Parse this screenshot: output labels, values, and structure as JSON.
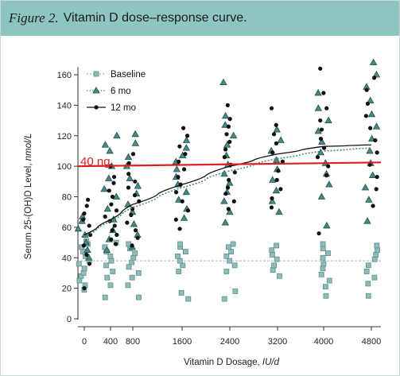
{
  "figure": {
    "label": "Figure 2.",
    "title": "Vitamin D dose–response curve."
  },
  "chart_data": {
    "type": "scatter",
    "title": "Vitamin D dose–response curve.",
    "xlabel": "Vitamin D Dosage, IU/d",
    "ylabel": "Serum 25-(OH)D Level, nmol/L",
    "xticks": [
      0,
      400,
      800,
      1600,
      2400,
      3200,
      4000,
      4800
    ],
    "yticks": [
      0,
      20,
      40,
      60,
      80,
      100,
      120,
      140,
      160
    ],
    "ylim": [
      0,
      165
    ],
    "legend_position": "top-left",
    "legend": [
      "Baseline",
      "6 mo",
      "12 mo"
    ],
    "annotation": {
      "text": "40 ng",
      "y": 101,
      "color": "#e02020"
    },
    "colors": {
      "baseline": "#8fbcba",
      "six_mo": "#4a8a86",
      "twelve_mo": "#111111",
      "reference": "#e02020"
    },
    "series": [
      {
        "name": "Baseline",
        "marker": "square",
        "points": [
          [
            0,
            19
          ],
          [
            0,
            22
          ],
          [
            0,
            25
          ],
          [
            0,
            28
          ],
          [
            0,
            30
          ],
          [
            0,
            33
          ],
          [
            0,
            36
          ],
          [
            0,
            38
          ],
          [
            0,
            41
          ],
          [
            0,
            44
          ],
          [
            0,
            47
          ],
          [
            0,
            49
          ],
          [
            0,
            51
          ],
          [
            400,
            14
          ],
          [
            400,
            22
          ],
          [
            400,
            27
          ],
          [
            400,
            31
          ],
          [
            400,
            35
          ],
          [
            400,
            38
          ],
          [
            400,
            41
          ],
          [
            400,
            44
          ],
          [
            400,
            47
          ],
          [
            400,
            50
          ],
          [
            800,
            14
          ],
          [
            800,
            22
          ],
          [
            800,
            27
          ],
          [
            800,
            30
          ],
          [
            800,
            34
          ],
          [
            800,
            37
          ],
          [
            800,
            40
          ],
          [
            800,
            43
          ],
          [
            800,
            46
          ],
          [
            800,
            49
          ],
          [
            1600,
            13
          ],
          [
            1600,
            17
          ],
          [
            1600,
            31
          ],
          [
            1600,
            35
          ],
          [
            1600,
            38
          ],
          [
            1600,
            41
          ],
          [
            1600,
            44
          ],
          [
            1600,
            47
          ],
          [
            1600,
            49
          ],
          [
            2400,
            13
          ],
          [
            2400,
            18
          ],
          [
            2400,
            31
          ],
          [
            2400,
            35
          ],
          [
            2400,
            38
          ],
          [
            2400,
            41
          ],
          [
            2400,
            44
          ],
          [
            2400,
            47
          ],
          [
            2400,
            49
          ],
          [
            3200,
            28
          ],
          [
            3200,
            32
          ],
          [
            3200,
            35
          ],
          [
            3200,
            39
          ],
          [
            3200,
            42
          ],
          [
            3200,
            45
          ],
          [
            3200,
            48
          ],
          [
            4000,
            15
          ],
          [
            4000,
            21
          ],
          [
            4000,
            25
          ],
          [
            4000,
            29
          ],
          [
            4000,
            33
          ],
          [
            4000,
            36
          ],
          [
            4000,
            40
          ],
          [
            4000,
            43
          ],
          [
            4000,
            46
          ],
          [
            4000,
            49
          ],
          [
            4800,
            15
          ],
          [
            4800,
            23
          ],
          [
            4800,
            27
          ],
          [
            4800,
            31
          ],
          [
            4800,
            35
          ],
          [
            4800,
            39
          ],
          [
            4800,
            42
          ],
          [
            4800,
            45
          ],
          [
            4800,
            48
          ]
        ],
        "mean": 38
      },
      {
        "name": "6 mo",
        "marker": "triangle",
        "points": [
          [
            0,
            40
          ],
          [
            0,
            45
          ],
          [
            0,
            50
          ],
          [
            0,
            55
          ],
          [
            0,
            59
          ],
          [
            0,
            64
          ],
          [
            0,
            67
          ],
          [
            400,
            45
          ],
          [
            400,
            52
          ],
          [
            400,
            58
          ],
          [
            400,
            65
          ],
          [
            400,
            72
          ],
          [
            400,
            80
          ],
          [
            400,
            85
          ],
          [
            400,
            92
          ],
          [
            400,
            100
          ],
          [
            400,
            110
          ],
          [
            400,
            114
          ],
          [
            400,
            120
          ],
          [
            800,
            47
          ],
          [
            800,
            55
          ],
          [
            800,
            62
          ],
          [
            800,
            70
          ],
          [
            800,
            75
          ],
          [
            800,
            82
          ],
          [
            800,
            87
          ],
          [
            800,
            92
          ],
          [
            800,
            100
          ],
          [
            800,
            106
          ],
          [
            800,
            115
          ],
          [
            800,
            121
          ],
          [
            1600,
            66
          ],
          [
            1600,
            72
          ],
          [
            1600,
            78
          ],
          [
            1600,
            83
          ],
          [
            1600,
            88
          ],
          [
            1600,
            93
          ],
          [
            1600,
            98
          ],
          [
            1600,
            103
          ],
          [
            1600,
            107
          ],
          [
            1600,
            112
          ],
          [
            1600,
            117
          ],
          [
            2400,
            63
          ],
          [
            2400,
            70
          ],
          [
            2400,
            77
          ],
          [
            2400,
            83
          ],
          [
            2400,
            89
          ],
          [
            2400,
            95
          ],
          [
            2400,
            101
          ],
          [
            2400,
            107
          ],
          [
            2400,
            114
          ],
          [
            2400,
            120
          ],
          [
            2400,
            127
          ],
          [
            2400,
            133
          ],
          [
            2400,
            155
          ],
          [
            3200,
            70
          ],
          [
            3200,
            77
          ],
          [
            3200,
            84
          ],
          [
            3200,
            91
          ],
          [
            3200,
            98
          ],
          [
            3200,
            104
          ],
          [
            3200,
            110
          ],
          [
            3200,
            117
          ],
          [
            3200,
            124
          ],
          [
            4000,
            61
          ],
          [
            4000,
            80
          ],
          [
            4000,
            88
          ],
          [
            4000,
            95
          ],
          [
            4000,
            102
          ],
          [
            4000,
            109
          ],
          [
            4000,
            116
          ],
          [
            4000,
            123
          ],
          [
            4000,
            130
          ],
          [
            4000,
            138
          ],
          [
            4000,
            148
          ],
          [
            4800,
            64
          ],
          [
            4800,
            78
          ],
          [
            4800,
            86
          ],
          [
            4800,
            94
          ],
          [
            4800,
            102
          ],
          [
            4800,
            110
          ],
          [
            4800,
            118
          ],
          [
            4800,
            126
          ],
          [
            4800,
            134
          ],
          [
            4800,
            143
          ],
          [
            4800,
            152
          ],
          [
            4800,
            160
          ],
          [
            4800,
            168
          ]
        ],
        "fit": [
          [
            0,
            54
          ],
          [
            400,
            64
          ],
          [
            800,
            73
          ],
          [
            1600,
            86
          ],
          [
            2400,
            97
          ],
          [
            3200,
            105
          ],
          [
            4000,
            110
          ],
          [
            4800,
            112
          ]
        ]
      },
      {
        "name": "12 mo",
        "marker": "circle",
        "points": [
          [
            0,
            20
          ],
          [
            0,
            36
          ],
          [
            0,
            42
          ],
          [
            0,
            48
          ],
          [
            0,
            55
          ],
          [
            0,
            61
          ],
          [
            0,
            65
          ],
          [
            0,
            69
          ],
          [
            0,
            74
          ],
          [
            0,
            78
          ],
          [
            400,
            49
          ],
          [
            400,
            52
          ],
          [
            400,
            55
          ],
          [
            400,
            58
          ],
          [
            400,
            61
          ],
          [
            400,
            64
          ],
          [
            400,
            67
          ],
          [
            400,
            71
          ],
          [
            400,
            75
          ],
          [
            400,
            80
          ],
          [
            400,
            84
          ],
          [
            400,
            89
          ],
          [
            400,
            93
          ],
          [
            400,
            100
          ],
          [
            800,
            48
          ],
          [
            800,
            53
          ],
          [
            800,
            58
          ],
          [
            800,
            63
          ],
          [
            800,
            68
          ],
          [
            800,
            72
          ],
          [
            800,
            77
          ],
          [
            800,
            81
          ],
          [
            800,
            86
          ],
          [
            800,
            90
          ],
          [
            800,
            95
          ],
          [
            800,
            102
          ],
          [
            800,
            108
          ],
          [
            1600,
            59
          ],
          [
            1600,
            65
          ],
          [
            1600,
            71
          ],
          [
            1600,
            77
          ],
          [
            1600,
            83
          ],
          [
            1600,
            88
          ],
          [
            1600,
            93
          ],
          [
            1600,
            98
          ],
          [
            1600,
            103
          ],
          [
            1600,
            108
          ],
          [
            1600,
            113
          ],
          [
            1600,
            120
          ],
          [
            1600,
            125
          ],
          [
            2400,
            72
          ],
          [
            2400,
            77
          ],
          [
            2400,
            82
          ],
          [
            2400,
            86
          ],
          [
            2400,
            91
          ],
          [
            2400,
            96
          ],
          [
            2400,
            101
          ],
          [
            2400,
            106
          ],
          [
            2400,
            111
          ],
          [
            2400,
            116
          ],
          [
            2400,
            121
          ],
          [
            2400,
            126
          ],
          [
            2400,
            131
          ],
          [
            2400,
            140
          ],
          [
            3200,
            73
          ],
          [
            3200,
            79
          ],
          [
            3200,
            85
          ],
          [
            3200,
            91
          ],
          [
            3200,
            97
          ],
          [
            3200,
            103
          ],
          [
            3200,
            109
          ],
          [
            3200,
            115
          ],
          [
            3200,
            121
          ],
          [
            3200,
            127
          ],
          [
            3200,
            138
          ],
          [
            4000,
            56
          ],
          [
            4000,
            94
          ],
          [
            4000,
            100
          ],
          [
            4000,
            106
          ],
          [
            4000,
            112
          ],
          [
            4000,
            118
          ],
          [
            4000,
            124
          ],
          [
            4000,
            130
          ],
          [
            4000,
            138
          ],
          [
            4000,
            148
          ],
          [
            4000,
            164
          ],
          [
            4800,
            74
          ],
          [
            4800,
            85
          ],
          [
            4800,
            93
          ],
          [
            4800,
            101
          ],
          [
            4800,
            109
          ],
          [
            4800,
            117
          ],
          [
            4800,
            125
          ],
          [
            4800,
            133
          ],
          [
            4800,
            141
          ],
          [
            4800,
            150
          ],
          [
            4800,
            158
          ]
        ],
        "fit": [
          [
            0,
            55
          ],
          [
            400,
            65
          ],
          [
            800,
            75
          ],
          [
            1600,
            88
          ],
          [
            2400,
            100
          ],
          [
            3200,
            108
          ],
          [
            4000,
            113
          ],
          [
            4800,
            114
          ]
        ]
      }
    ]
  }
}
